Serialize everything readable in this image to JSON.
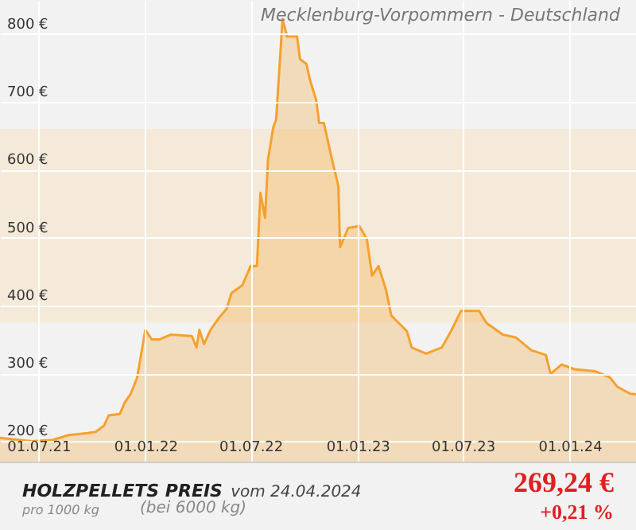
{
  "chart_data": {
    "type": "area",
    "title": "HOLZPELLETS PREIS",
    "subtitle": "Mecklenburg-Vorpommern - Deutschland",
    "annotations": [
      "vom 24.04.2024",
      "pro 1000 kg",
      "(bei 6000 kg)",
      "269,24 €",
      "+0,21 %"
    ],
    "x": [
      "2021-04-26",
      "2021-06-20",
      "2021-07-26",
      "2021-08-22",
      "2021-09-24",
      "2021-10-08",
      "2021-10-22",
      "2021-10-30",
      "2021-11-18",
      "2021-11-26",
      "2021-12-07",
      "2021-12-18",
      "2021-12-26",
      "2022-01-01",
      "2022-01-12",
      "2022-01-26",
      "2022-02-14",
      "2022-03-22",
      "2022-03-30",
      "2022-04-04",
      "2022-04-12",
      "2022-04-23",
      "2022-05-07",
      "2022-05-21",
      "2022-05-29",
      "2022-06-17",
      "2022-07-01",
      "2022-07-12",
      "2022-07-18",
      "2022-07-26",
      "2022-07-31",
      "2022-08-09",
      "2022-08-14",
      "2022-08-25",
      "2022-09-02",
      "2022-09-19",
      "2022-09-24",
      "2022-10-05",
      "2022-10-11",
      "2022-10-22",
      "2022-10-27",
      "2022-11-04",
      "2022-11-18",
      "2022-11-29",
      "2022-12-02",
      "2022-12-16",
      "2023-01-04",
      "2023-01-17",
      "2023-01-26",
      "2023-02-06",
      "2023-02-19",
      "2023-02-28",
      "2023-03-13",
      "2023-03-27",
      "2023-04-04",
      "2023-04-29",
      "2023-05-26",
      "2023-06-12",
      "2023-06-28",
      "2023-07-29",
      "2023-08-11",
      "2023-09-08",
      "2023-09-30",
      "2023-10-27",
      "2023-11-21",
      "2023-11-29",
      "2023-12-18",
      "2024-01-09",
      "2024-02-14",
      "2024-03-10",
      "2024-03-23",
      "2024-04-14",
      "2024-04-24"
    ],
    "series": [
      {
        "color": "#f5a12e",
        "values": [
          205,
          200,
          202,
          209,
          212,
          214,
          223,
          238,
          240,
          256,
          270,
          294,
          334,
          364,
          350,
          350,
          357,
          355,
          338,
          364,
          343,
          364,
          381,
          395,
          418,
          430,
          458,
          458,
          566,
          529,
          615,
          662,
          674,
          822,
          796,
          796,
          763,
          756,
          733,
          702,
          669,
          669,
          615,
          576,
          486,
          514,
          517,
          498,
          444,
          458,
          423,
          385,
          374,
          362,
          338,
          329,
          338,
          364,
          392,
          392,
          374,
          357,
          353,
          334,
          327,
          299,
          313,
          306,
          303,
          294,
          280,
          270,
          269
        ]
      }
    ],
    "xlim": [
      "2021-04-26",
      "2024-04-24"
    ],
    "ylim": [
      170,
      850
    ],
    "xticks": [
      {
        "value": "2021-07-01",
        "label": "01.07.21"
      },
      {
        "value": "2022-01-01",
        "label": "01.01.22"
      },
      {
        "value": "2022-07-01",
        "label": "01.07.22"
      },
      {
        "value": "2023-01-01",
        "label": "01.01.23"
      },
      {
        "value": "2023-07-01",
        "label": "01.07.23"
      },
      {
        "value": "2024-01-01",
        "label": "01.01.24"
      }
    ],
    "yticks": [
      {
        "value": 200,
        "label": "200 €"
      },
      {
        "value": 300,
        "label": "300 €"
      },
      {
        "value": 400,
        "label": "400 €"
      },
      {
        "value": 500,
        "label": "500 €"
      },
      {
        "value": 600,
        "label": "600 €"
      },
      {
        "value": 700,
        "label": "700 €"
      },
      {
        "value": 800,
        "label": "800 €"
      }
    ],
    "bands": [
      {
        "axis": "y",
        "from": 375,
        "to": 660,
        "color": "#f5ead9"
      }
    ],
    "grid": true
  }
}
